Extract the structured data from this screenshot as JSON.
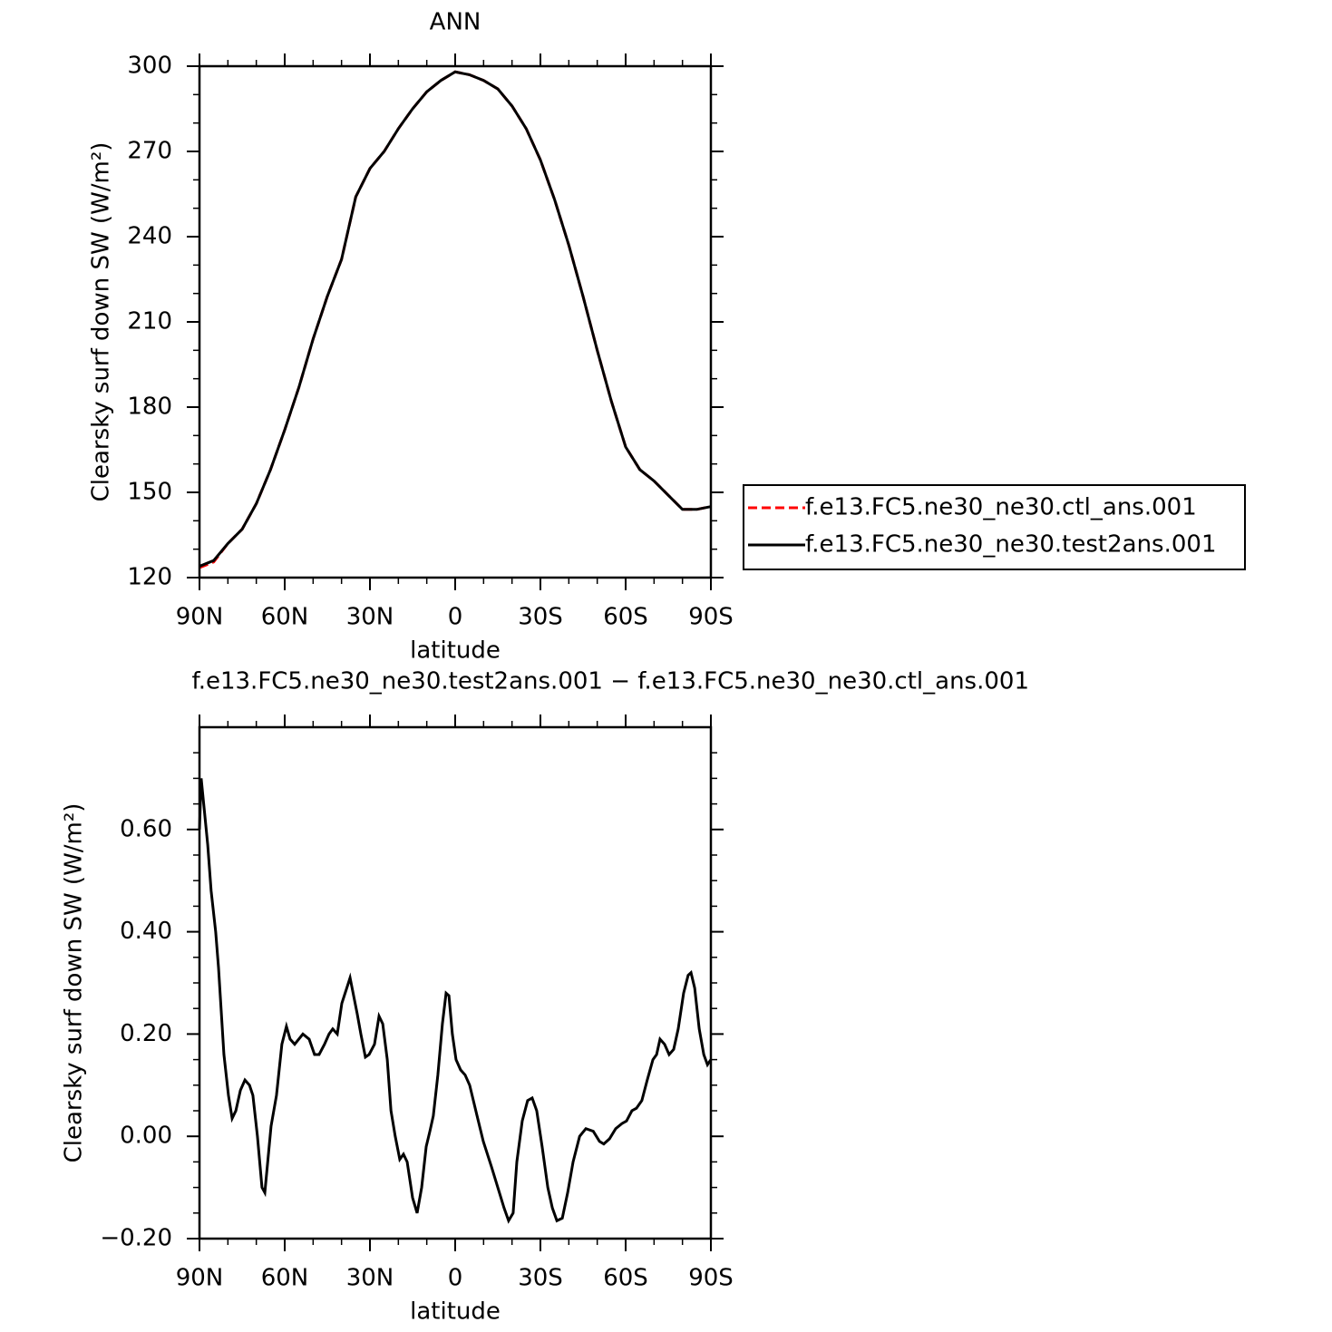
{
  "chart_data": [
    {
      "type": "line",
      "title": "ANN",
      "xlabel": "latitude",
      "ylabel": "Clearsky surf down SW (W/m²)",
      "x": [
        90,
        85,
        80,
        75,
        70,
        65,
        60,
        55,
        50,
        45,
        40,
        35,
        30,
        25,
        20,
        15,
        10,
        5,
        0,
        -5,
        -10,
        -15,
        -20,
        -25,
        -30,
        -35,
        -40,
        -45,
        -50,
        -55,
        -60,
        -65,
        -70,
        -75,
        -80,
        -85,
        -90
      ],
      "xlim": [
        90,
        -90
      ],
      "xticks": [
        {
          "value": 90,
          "label": "90N"
        },
        {
          "value": 60,
          "label": "60N"
        },
        {
          "value": 30,
          "label": "30N"
        },
        0,
        {
          "value": -30,
          "label": "30S"
        },
        {
          "value": -60,
          "label": "60S"
        },
        {
          "value": -90,
          "label": "90S"
        }
      ],
      "xminorticks": [
        80,
        70,
        50,
        40,
        20,
        10,
        -10,
        -20,
        -40,
        -50,
        -70,
        -80
      ],
      "ylim": [
        120,
        300
      ],
      "yticks": [
        120,
        150,
        180,
        210,
        240,
        270,
        300
      ],
      "yminorticks": [
        130,
        140,
        160,
        170,
        190,
        200,
        220,
        230,
        250,
        260,
        280,
        290
      ],
      "legend": "right",
      "series": [
        {
          "name": "f.e13.FC5.ne30_ne30.ctl_ans.001",
          "color": "#ff0000",
          "line_style": "dashed",
          "values": [
            123.5,
            125.5,
            132,
            137,
            146,
            158,
            172,
            187,
            204,
            219,
            232,
            254,
            264,
            270,
            278,
            285,
            291,
            295,
            298,
            297,
            295,
            292,
            286,
            278,
            267,
            253,
            237,
            219,
            200,
            182,
            166,
            158,
            154,
            149,
            144,
            144,
            145
          ]
        },
        {
          "name": "f.e13.FC5.ne30_ne30.test2ans.001",
          "color": "#000000",
          "line_style": "solid",
          "values": [
            124,
            126,
            132,
            137,
            146,
            158,
            172,
            187,
            204,
            219,
            232,
            254,
            264,
            270,
            278,
            285,
            291,
            295,
            298,
            297,
            295,
            292,
            286,
            278,
            267,
            253,
            237,
            219,
            200,
            182,
            166,
            158,
            154,
            149,
            144,
            144,
            145
          ]
        }
      ]
    },
    {
      "type": "line",
      "title": "f.e13.FC5.ne30_ne30.test2ans.001 − f.e13.FC5.ne30_ne30.ctl_ans.001",
      "xlabel": "latitude",
      "ylabel": "Clearsky surf down SW (W/m²)",
      "x": [
        90,
        89.4,
        87.1,
        85.9,
        84.3,
        83.3,
        81.4,
        79.8,
        78.5,
        77.2,
        75.6,
        74.0,
        72.4,
        71.2,
        69.6,
        68.0,
        67.0,
        64.8,
        62.9,
        61.0,
        59.4,
        58.1,
        56.5,
        53.6,
        51.4,
        49.5,
        47.9,
        46.0,
        44.4,
        43.1,
        41.5,
        39.9,
        37.0,
        34.5,
        33.2,
        31.6,
        30.3,
        28.4,
        26.8,
        25.5,
        23.9,
        22.6,
        21.1,
        19.5,
        18.2,
        16.9,
        15.0,
        13.4,
        11.8,
        10.2,
        8.9,
        7.7,
        6.1,
        4.5,
        3.2,
        2.2,
        1.0,
        -0.3,
        -1.9,
        -3.5,
        -5.1,
        -7.7,
        -9.9,
        -12.8,
        -15.0,
        -17.2,
        -18.8,
        -20.4,
        -21.7,
        -23.6,
        -25.5,
        -27.1,
        -28.7,
        -30.6,
        -32.6,
        -34.2,
        -35.8,
        -37.7,
        -39.6,
        -41.5,
        -43.8,
        -46.0,
        -48.6,
        -50.8,
        -52.3,
        -54.3,
        -56.5,
        -58.7,
        -60.3,
        -62.2,
        -63.8,
        -65.7,
        -67.6,
        -69.6,
        -70.9,
        -72.1,
        -73.7,
        -75.3,
        -76.9,
        -78.5,
        -80.4,
        -82.0,
        -83.0,
        -84.3,
        -85.9,
        -87.5,
        -88.8,
        -90
      ],
      "xlim": [
        90,
        -90
      ],
      "xticks": [
        {
          "value": 90,
          "label": "90N"
        },
        {
          "value": 60,
          "label": "60N"
        },
        {
          "value": 30,
          "label": "30N"
        },
        0,
        {
          "value": -30,
          "label": "30S"
        },
        {
          "value": -60,
          "label": "60S"
        },
        {
          "value": -90,
          "label": "90S"
        }
      ],
      "xminorticks": [
        80,
        70,
        50,
        40,
        20,
        10,
        -10,
        -20,
        -40,
        -50,
        -70,
        -80
      ],
      "ylim": [
        -0.2,
        0.8
      ],
      "yticks": [
        {
          "value": -0.2,
          "label": "−0.20"
        },
        {
          "value": 0,
          "label": "0.00"
        },
        {
          "value": 0.2,
          "label": "0.20"
        },
        {
          "value": 0.4,
          "label": "0.40"
        },
        {
          "value": 0.6,
          "label": "0.60"
        }
      ],
      "yminorticks": [
        -0.15,
        -0.1,
        -0.05,
        0.05,
        0.1,
        0.15,
        0.25,
        0.3,
        0.35,
        0.45,
        0.5,
        0.55,
        0.65,
        0.7,
        0.75
      ],
      "series": [
        {
          "color": "#000000",
          "line_style": "solid",
          "values": [
            0.6,
            0.7,
            0.57,
            0.48,
            0.4,
            0.33,
            0.16,
            0.08,
            0.035,
            0.05,
            0.09,
            0.11,
            0.1,
            0.08,
            0.0,
            -0.1,
            -0.11,
            0.02,
            0.08,
            0.18,
            0.215,
            0.19,
            0.18,
            0.2,
            0.19,
            0.16,
            0.16,
            0.18,
            0.2,
            0.21,
            0.2,
            0.26,
            0.31,
            0.24,
            0.2,
            0.155,
            0.16,
            0.18,
            0.235,
            0.22,
            0.15,
            0.05,
            0.0,
            -0.045,
            -0.035,
            -0.05,
            -0.12,
            -0.15,
            -0.1,
            -0.02,
            0.01,
            0.04,
            0.12,
            0.22,
            0.28,
            0.275,
            0.2,
            0.15,
            0.13,
            0.12,
            0.1,
            0.04,
            -0.01,
            -0.06,
            -0.1,
            -0.14,
            -0.165,
            -0.15,
            -0.05,
            0.03,
            0.07,
            0.075,
            0.05,
            -0.02,
            -0.1,
            -0.14,
            -0.165,
            -0.16,
            -0.11,
            -0.05,
            0.0,
            0.015,
            0.01,
            -0.01,
            -0.015,
            -0.005,
            0.015,
            0.025,
            0.03,
            0.05,
            0.055,
            0.07,
            0.11,
            0.15,
            0.16,
            0.19,
            0.18,
            0.16,
            0.17,
            0.21,
            0.28,
            0.315,
            0.32,
            0.29,
            0.21,
            0.16,
            0.14,
            0.15
          ]
        }
      ]
    }
  ]
}
